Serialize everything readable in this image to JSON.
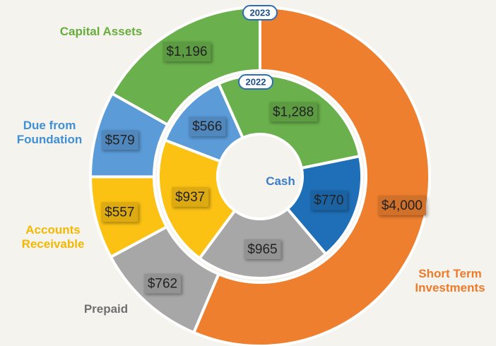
{
  "chart_data": {
    "type": "donut",
    "categories": [
      "Capital Assets",
      "Cash",
      "Prepaid",
      "Accounts Receivable",
      "Due from Foundation",
      "Short Term Investments"
    ],
    "colors": [
      "#6ab04c",
      "#1f6fb8",
      "#a7a7a7",
      "#fbc213",
      "#5b9bd8",
      "#ee7f2f"
    ],
    "label_colors": [
      "#67ad3c",
      "#3a7ccc",
      "#707070",
      "#f4b800",
      "#3f8fd4",
      "#ee7a2a"
    ],
    "series": [
      {
        "name": "2023",
        "values": [
          1196,
          null,
          762,
          557,
          579,
          4000
        ],
        "value_labels": [
          "$1,196",
          null,
          "$762",
          "$557",
          "$579",
          "$4,000"
        ]
      },
      {
        "name": "2022",
        "values": [
          1288,
          770,
          965,
          937,
          566,
          null
        ],
        "value_labels": [
          "$1,288",
          "$770",
          "$965",
          "$937",
          "$566",
          null
        ]
      }
    ]
  }
}
